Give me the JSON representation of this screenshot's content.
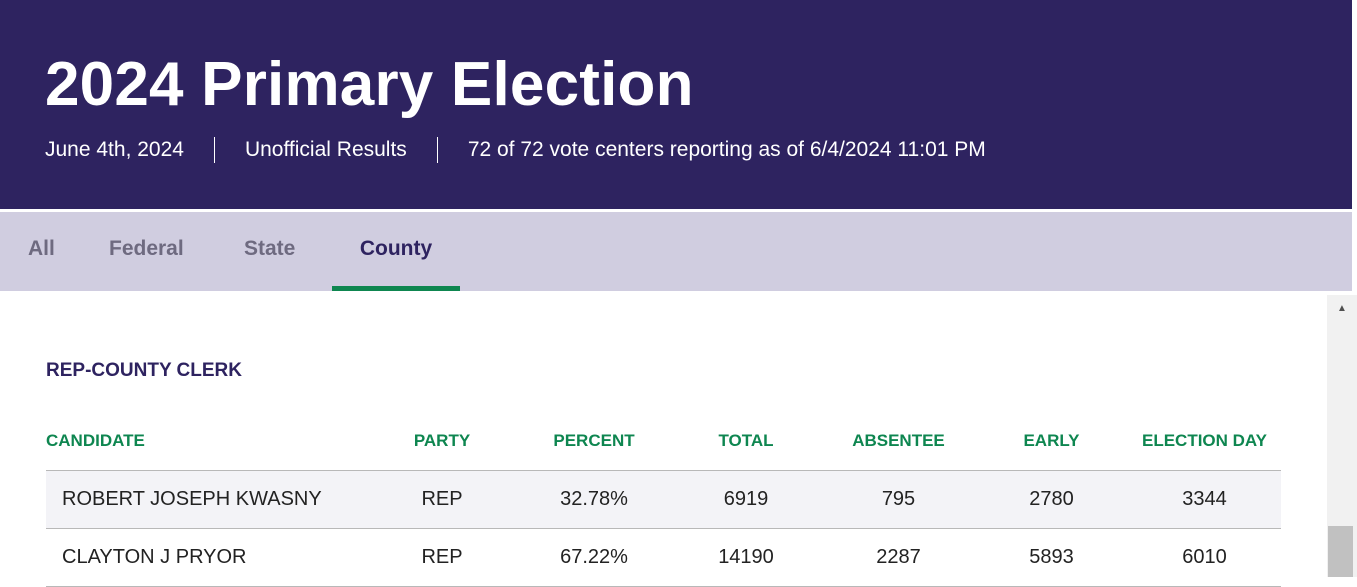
{
  "header": {
    "title": "2024 Primary Election",
    "date": "June 4th, 2024",
    "status": "Unofficial Results",
    "reporting": "72 of 72 vote centers reporting as of 6/4/2024 11:01 PM"
  },
  "tabs": [
    {
      "label": "All"
    },
    {
      "label": "Federal"
    },
    {
      "label": "State"
    },
    {
      "label": "County",
      "active": true
    }
  ],
  "race": {
    "title": "REP-COUNTY CLERK",
    "columns": [
      "CANDIDATE",
      "PARTY",
      "PERCENT",
      "TOTAL",
      "ABSENTEE",
      "EARLY",
      "ELECTION DAY"
    ],
    "rows": [
      {
        "candidate": "ROBERT JOSEPH KWASNY",
        "party": "REP",
        "percent": "32.78%",
        "total": "6919",
        "absentee": "795",
        "early": "2780",
        "election_day": "3344"
      },
      {
        "candidate": "CLAYTON J PRYOR",
        "party": "REP",
        "percent": "67.22%",
        "total": "14190",
        "absentee": "2287",
        "early": "5893",
        "election_day": "6010"
      }
    ]
  },
  "icons": {
    "scroll_up": "scroll-up-arrow-icon"
  },
  "colors": {
    "header_bg": "#2e2360",
    "tab_bar_bg": "#d0cde0",
    "accent_green": "#0e8650",
    "row_shade": "#f3f3f7"
  }
}
